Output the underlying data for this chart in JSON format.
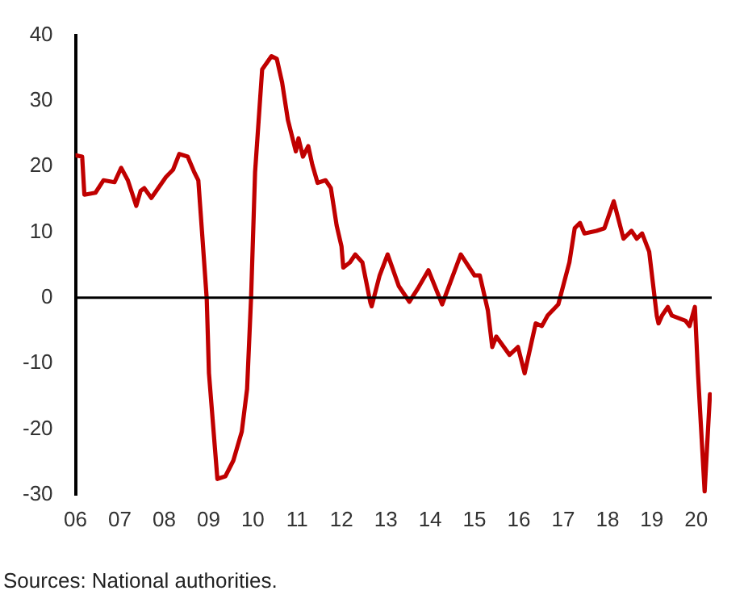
{
  "chart_data": {
    "type": "line",
    "annotations": [
      "Sources: National authorities."
    ],
    "x": [
      2006.0,
      2006.15,
      2006.2,
      2006.45,
      2006.63,
      2006.88,
      2007.03,
      2007.18,
      2007.37,
      2007.47,
      2007.55,
      2007.71,
      2008.04,
      2008.2,
      2008.34,
      2008.53,
      2008.68,
      2008.77,
      2008.86,
      2008.96,
      2009.01,
      2009.2,
      2009.38,
      2009.56,
      2009.75,
      2009.87,
      2009.96,
      2010.05,
      2010.21,
      2010.42,
      2010.54,
      2010.66,
      2010.79,
      2010.97,
      2011.03,
      2011.13,
      2011.25,
      2011.34,
      2011.46,
      2011.64,
      2011.76,
      2011.89,
      2012.0,
      2012.04,
      2012.19,
      2012.31,
      2012.47,
      2012.65,
      2012.68,
      2012.86,
      2013.04,
      2013.29,
      2013.53,
      2013.72,
      2013.96,
      2014.27,
      2014.69,
      2015.0,
      2015.12,
      2015.3,
      2015.4,
      2015.49,
      2015.79,
      2015.98,
      2016.13,
      2016.38,
      2016.52,
      2016.65,
      2016.89,
      2017.14,
      2017.26,
      2017.38,
      2017.48,
      2017.75,
      2017.93,
      2018.14,
      2018.36,
      2018.54,
      2018.66,
      2018.78,
      2018.94,
      2019.11,
      2019.15,
      2019.23,
      2019.36,
      2019.45,
      2019.76,
      2019.85,
      2019.97,
      2020.04,
      2020.19,
      2020.31
    ],
    "series": [
      {
        "color": "#c00000",
        "values": [
          21.7,
          21.5,
          15.7,
          16,
          17.9,
          17.6,
          19.8,
          17.9,
          14,
          16.3,
          16.7,
          15.2,
          18.4,
          19.5,
          21.9,
          21.5,
          19.1,
          17.9,
          9.4,
          -0.2,
          -11.5,
          -27.6,
          -27.2,
          -24.8,
          -20.4,
          -13.9,
          0,
          19.1,
          34.8,
          36.8,
          36.4,
          32.8,
          27.1,
          22.3,
          24.3,
          21.5,
          23.1,
          20.3,
          17.5,
          17.9,
          16.7,
          11,
          7.8,
          4.6,
          5.4,
          6.6,
          5.4,
          -0.7,
          -1.3,
          3.4,
          6.6,
          1.8,
          -0.6,
          1.4,
          4.2,
          -1,
          6.6,
          3.4,
          3.4,
          -1.9,
          -7.5,
          -5.9,
          -8.7,
          -7.5,
          -11.5,
          -3.9,
          -4.3,
          -2.7,
          -1,
          5.4,
          10.6,
          11.4,
          9.8,
          10.2,
          10.6,
          14.7,
          9,
          10.2,
          9,
          9.8,
          7,
          -2.7,
          -3.9,
          -2.7,
          -1.4,
          -2.7,
          -3.5,
          -4.3,
          -1.4,
          -11.5,
          -29.5,
          -14.7
        ]
      }
    ],
    "xlim": [
      2006,
      2020.35
    ],
    "xticks": [
      {
        "value": 2006,
        "label": "06"
      },
      {
        "value": 2007,
        "label": "07"
      },
      {
        "value": 2008,
        "label": "08"
      },
      {
        "value": 2009,
        "label": "09"
      },
      {
        "value": 2010,
        "label": "10"
      },
      {
        "value": 2011,
        "label": "11"
      },
      {
        "value": 2012,
        "label": "12"
      },
      {
        "value": 2013,
        "label": "13"
      },
      {
        "value": 2014,
        "label": "14"
      },
      {
        "value": 2015,
        "label": "15"
      },
      {
        "value": 2016,
        "label": "16"
      },
      {
        "value": 2017,
        "label": "17"
      },
      {
        "value": 2018,
        "label": "18"
      },
      {
        "value": 2019,
        "label": "19"
      },
      {
        "value": 2020,
        "label": "20"
      }
    ],
    "ylim": [
      -30,
      40
    ],
    "yticks": [
      -30,
      -20,
      -10,
      0,
      10,
      20,
      30,
      40
    ],
    "ref_lines": [
      {
        "axis": "y",
        "value": 0,
        "color": "#000000"
      }
    ],
    "grid": false,
    "legend": false,
    "marker": "none",
    "line_style": "solid"
  }
}
